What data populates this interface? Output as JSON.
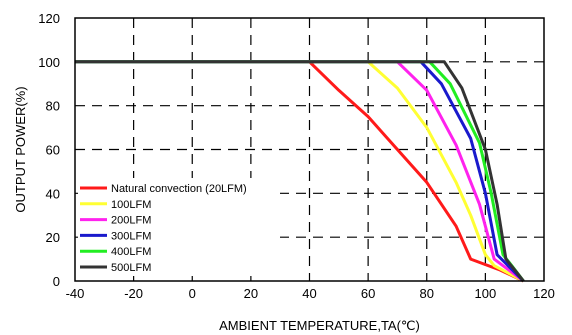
{
  "chart_data": {
    "type": "line",
    "xlabel": "AMBIENT TEMPERATURE,TA(℃)",
    "ylabel": "OUTPUT POWER(%)",
    "xlim": [
      -40,
      120
    ],
    "ylim": [
      0,
      120
    ],
    "xticks": [
      -40,
      -20,
      0,
      20,
      40,
      60,
      80,
      100,
      120
    ],
    "yticks": [
      0,
      20,
      40,
      60,
      80,
      100,
      120
    ],
    "xtick_labels": [
      "-40",
      "-20",
      "0",
      "20",
      "40",
      "60",
      "80",
      "100",
      "120"
    ],
    "ytick_labels": [
      "0",
      "20",
      "40",
      "60",
      "80",
      "100",
      "120"
    ],
    "grid": "dashed",
    "legend_position": "bottom-left",
    "series": [
      {
        "name": "Natural convection (20LFM)",
        "color": "#ff1a1a",
        "points": [
          [
            -40,
            100
          ],
          [
            40,
            100
          ],
          [
            50,
            87
          ],
          [
            60,
            75
          ],
          [
            70,
            60
          ],
          [
            80,
            45
          ],
          [
            90,
            25
          ],
          [
            95,
            10
          ],
          [
            105,
            5
          ],
          [
            113,
            0
          ]
        ]
      },
      {
        "name": "100LFM",
        "color": "#ffff33",
        "points": [
          [
            -40,
            100
          ],
          [
            60,
            100
          ],
          [
            70,
            88
          ],
          [
            80,
            70
          ],
          [
            90,
            45
          ],
          [
            95,
            30
          ],
          [
            100,
            12
          ],
          [
            103,
            7
          ],
          [
            113,
            0
          ]
        ]
      },
      {
        "name": "200LFM",
        "color": "#ff22ee",
        "points": [
          [
            -40,
            100
          ],
          [
            70,
            100
          ],
          [
            80,
            87
          ],
          [
            90,
            62
          ],
          [
            98,
            35
          ],
          [
            103,
            10
          ],
          [
            106,
            7
          ],
          [
            113,
            0
          ]
        ]
      },
      {
        "name": "300LFM",
        "color": "#1a1acc",
        "points": [
          [
            -40,
            100
          ],
          [
            78,
            100
          ],
          [
            85,
            90
          ],
          [
            95,
            65
          ],
          [
            100,
            40
          ],
          [
            104,
            12
          ],
          [
            107,
            8
          ],
          [
            113,
            0
          ]
        ]
      },
      {
        "name": "400LFM",
        "color": "#22ee22",
        "points": [
          [
            -40,
            100
          ],
          [
            81,
            100
          ],
          [
            88,
            90
          ],
          [
            98,
            63
          ],
          [
            102,
            40
          ],
          [
            106,
            12
          ],
          [
            109,
            7
          ],
          [
            113,
            0
          ]
        ]
      },
      {
        "name": "500LFM",
        "color": "#333333",
        "points": [
          [
            -40,
            100
          ],
          [
            86,
            100
          ],
          [
            92,
            88
          ],
          [
            100,
            60
          ],
          [
            104,
            35
          ],
          [
            107,
            10
          ],
          [
            110,
            5
          ],
          [
            113,
            0
          ]
        ]
      }
    ]
  }
}
